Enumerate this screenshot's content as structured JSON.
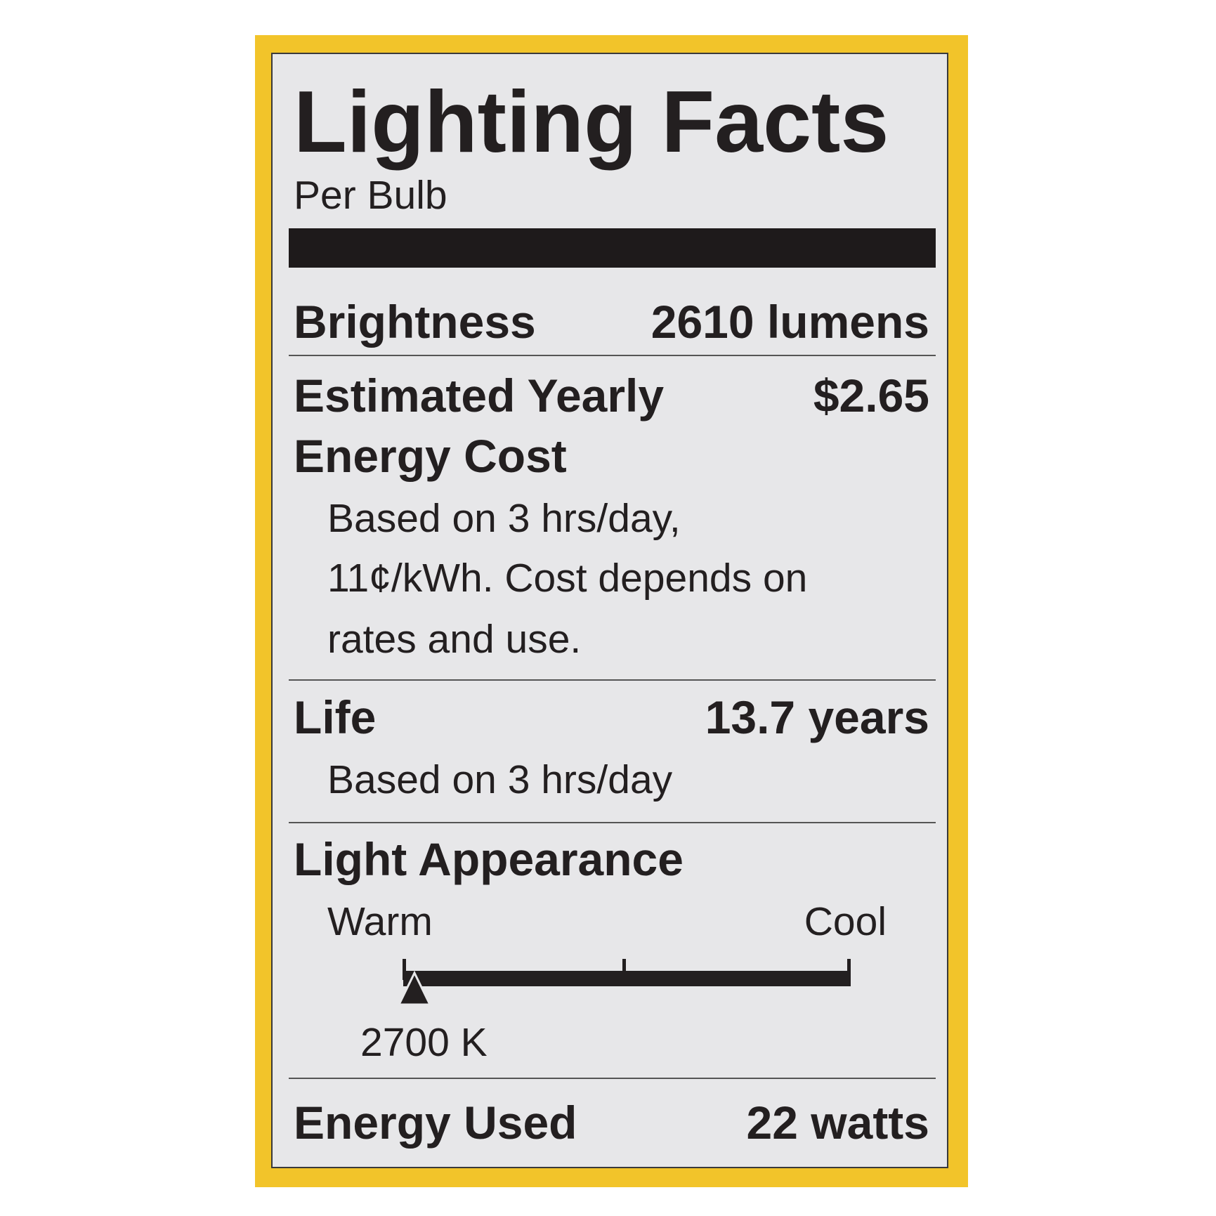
{
  "label": {
    "title": "Lighting Facts",
    "subtitle": "Per Bulb",
    "brightness": {
      "label": "Brightness",
      "value": "2610 lumens"
    },
    "energy_cost": {
      "label_line1": "Estimated Yearly",
      "label_line2": "Energy Cost",
      "value": "$2.65",
      "note": [
        "Based on 3 hrs/day,",
        "11¢/kWh. Cost depends on",
        "rates and use."
      ]
    },
    "life": {
      "label": "Life",
      "value": "13.7 years",
      "note": "Based on 3 hrs/day"
    },
    "light_appearance": {
      "label": "Light Appearance",
      "warm_label": "Warm",
      "cool_label": "Cool",
      "value": "2700 K",
      "scale_position": 0.0
    },
    "energy_used": {
      "label": "Energy Used",
      "value": "22 watts"
    }
  },
  "colors": {
    "border": "#f2c42a",
    "panel": "#e7e7e9",
    "text": "#231f20"
  }
}
